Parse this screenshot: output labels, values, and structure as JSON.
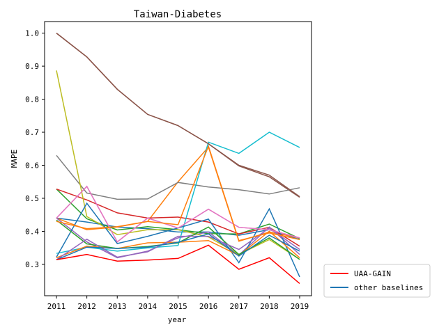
{
  "chart_data": {
    "type": "line",
    "title": "Taiwan-Diabetes",
    "xlabel": "year",
    "ylabel": "MAPE",
    "x": [
      2011,
      2012,
      2013,
      2014,
      2015,
      2016,
      2017,
      2018,
      2019
    ],
    "xticks": [
      "2011",
      "2012",
      "2013",
      "2014",
      "2015",
      "2016",
      "2017",
      "2018",
      "2019"
    ],
    "yticks": [
      "0.3",
      "0.4",
      "0.5",
      "0.6",
      "0.7",
      "0.8",
      "0.9",
      "1.0"
    ],
    "ytick_values": [
      0.3,
      0.4,
      0.5,
      0.6,
      0.7,
      0.8,
      0.9,
      1.0
    ],
    "ylim": [
      0.205,
      1.035
    ],
    "grid": false,
    "legend_position": "outside-bottom-right",
    "legend": [
      {
        "label": "UAA-GAIN",
        "color": "#ff0000"
      },
      {
        "label": "other baselines",
        "color": "#1f77b4"
      }
    ],
    "series": [
      {
        "color": "#1f77b4",
        "values": [
          0.44,
          0.428,
          0.413,
          0.408,
          0.398,
          0.398,
          0.388,
          0.405,
          0.375
        ]
      },
      {
        "color": "#ff7f0e",
        "values": [
          0.44,
          0.405,
          0.413,
          0.43,
          0.55,
          0.655,
          0.37,
          0.398,
          0.38
        ]
      },
      {
        "color": "#2ca02c",
        "values": [
          0.528,
          0.438,
          0.404,
          0.414,
          0.405,
          0.393,
          0.392,
          0.422,
          0.378
        ]
      },
      {
        "color": "#d62728",
        "values": [
          0.528,
          0.495,
          0.456,
          0.44,
          0.443,
          0.428,
          0.392,
          0.412,
          0.355
        ]
      },
      {
        "color": "#9467bd",
        "values": [
          0.44,
          0.368,
          0.32,
          0.34,
          0.38,
          0.398,
          0.328,
          0.413,
          0.33
        ]
      },
      {
        "color": "#8c564b",
        "values": [
          1.0,
          0.928,
          0.83,
          0.754,
          0.72,
          0.665,
          0.598,
          0.565,
          0.503
        ]
      },
      {
        "color": "#e377c2",
        "values": [
          0.44,
          0.536,
          0.368,
          0.44,
          0.41,
          0.467,
          0.412,
          0.405,
          0.38
        ]
      },
      {
        "color": "#7f7f7f",
        "values": [
          0.63,
          0.516,
          0.497,
          0.498,
          0.548,
          0.534,
          0.526,
          0.513,
          0.532
        ]
      },
      {
        "color": "#bcbd22",
        "values": [
          0.887,
          0.445,
          0.39,
          0.405,
          0.405,
          0.383,
          0.33,
          0.375,
          0.315
        ]
      },
      {
        "color": "#17becf",
        "values": [
          0.333,
          0.352,
          0.34,
          0.35,
          0.357,
          0.67,
          0.636,
          0.7,
          0.654
        ]
      },
      {
        "color": "#1f77b4",
        "values": [
          0.322,
          0.485,
          0.363,
          0.385,
          0.41,
          0.437,
          0.305,
          0.468,
          0.262
        ]
      },
      {
        "color": "#ff7f0e",
        "values": [
          0.32,
          0.355,
          0.348,
          0.365,
          0.367,
          0.372,
          0.327,
          0.4,
          0.32
        ]
      },
      {
        "color": "#2ca02c",
        "values": [
          0.434,
          0.362,
          0.348,
          0.354,
          0.365,
          0.413,
          0.33,
          0.38,
          0.315
        ]
      },
      {
        "color": "#9467bd",
        "values": [
          0.314,
          0.376,
          0.322,
          0.338,
          0.385,
          0.385,
          0.345,
          0.41,
          0.345
        ]
      },
      {
        "color": "#8c564b",
        "values": [
          1.0,
          0.928,
          0.83,
          0.754,
          0.72,
          0.665,
          0.6,
          0.57,
          0.505
        ]
      },
      {
        "color": "#e377c2",
        "values": [
          0.44,
          0.536,
          0.368,
          0.44,
          0.41,
          0.467,
          0.412,
          0.405,
          0.38
        ]
      },
      {
        "color": "#1f77b4",
        "values": [
          0.314,
          0.352,
          0.348,
          0.352,
          0.367,
          0.392,
          0.325,
          0.388,
          0.34
        ]
      },
      {
        "color": "#ff7f0e",
        "values": [
          0.43,
          0.408,
          0.414,
          0.43,
          0.42,
          0.658,
          0.372,
          0.395,
          0.375
        ]
      },
      {
        "color": "#ff0000",
        "values": [
          0.314,
          0.33,
          0.31,
          0.313,
          0.318,
          0.358,
          0.285,
          0.32,
          0.242
        ]
      }
    ]
  }
}
